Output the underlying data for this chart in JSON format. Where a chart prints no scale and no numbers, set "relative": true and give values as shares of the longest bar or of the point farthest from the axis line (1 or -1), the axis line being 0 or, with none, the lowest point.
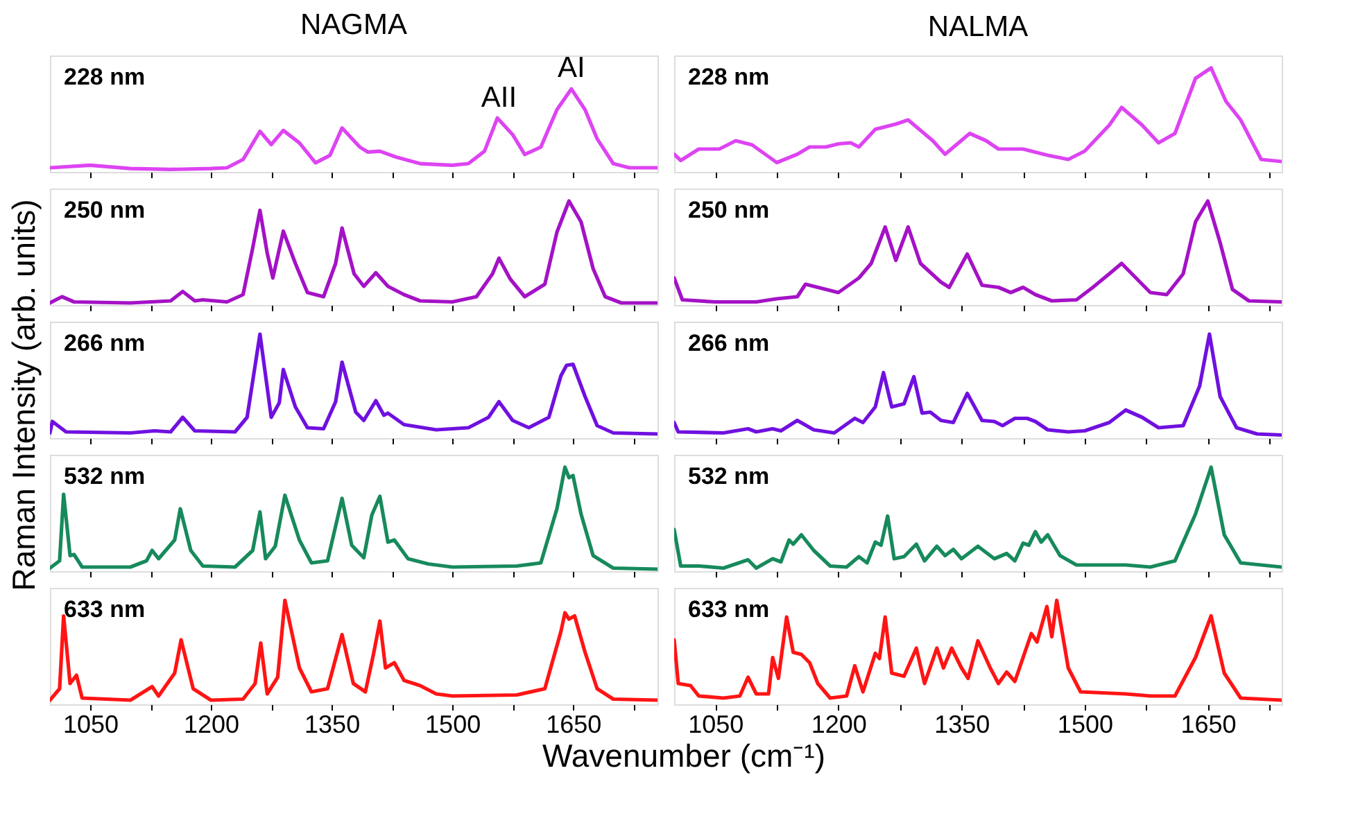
{
  "chart_data": [
    {
      "type": "line",
      "title": "NAGMA",
      "ylabel": "Raman Intensity (arb. units)",
      "relative": true,
      "tick_labels": false,
      "xlim": [
        1000,
        1755
      ],
      "xticks": [
        1050,
        {
          "value": 1125,
          "label": null
        },
        1200,
        {
          "value": 1275,
          "label": null
        },
        1350,
        {
          "value": 1425,
          "label": null
        },
        1500,
        {
          "value": 1575,
          "label": null
        },
        1650,
        {
          "value": 1725,
          "label": null
        }
      ],
      "annotations": [
        {
          "text": "AII",
          "x": 1558,
          "y": 0.72
        },
        {
          "text": "AI",
          "x": 1648,
          "y": 1.08
        }
      ],
      "series": [
        {
          "name": "228 nm",
          "color": "#dd44f2",
          "x": [
            1000,
            1050,
            1100,
            1150,
            1200,
            1220,
            1240,
            1261,
            1275,
            1290,
            1310,
            1330,
            1348,
            1363,
            1385,
            1395,
            1410,
            1430,
            1460,
            1500,
            1520,
            1540,
            1556,
            1575,
            1590,
            1610,
            1630,
            1648,
            1665,
            1680,
            1700,
            1720,
            1755
          ],
          "values": [
            0.05,
            0.08,
            0.04,
            0.03,
            0.04,
            0.05,
            0.15,
            0.49,
            0.33,
            0.5,
            0.35,
            0.11,
            0.2,
            0.53,
            0.3,
            0.24,
            0.25,
            0.18,
            0.1,
            0.08,
            0.1,
            0.25,
            0.65,
            0.45,
            0.21,
            0.3,
            0.75,
            1.0,
            0.75,
            0.4,
            0.1,
            0.05,
            0.05
          ]
        }
      ]
    },
    {
      "type": "line",
      "title": "NALMA",
      "relative": true,
      "tick_labels": false,
      "xlim": [
        1000,
        1740
      ],
      "xticks": [
        1050,
        {
          "value": 1125,
          "label": null
        },
        1200,
        {
          "value": 1275,
          "label": null
        },
        1350,
        {
          "value": 1425,
          "label": null
        },
        1500,
        {
          "value": 1575,
          "label": null
        },
        1650,
        {
          "value": 1725,
          "label": null
        }
      ],
      "series": [
        {
          "name": "228 nm",
          "color": "#dd44f2",
          "x": [
            1000,
            1008,
            1030,
            1055,
            1075,
            1095,
            1125,
            1150,
            1165,
            1185,
            1200,
            1215,
            1225,
            1245,
            1270,
            1285,
            1315,
            1330,
            1360,
            1380,
            1395,
            1425,
            1455,
            1480,
            1500,
            1530,
            1545,
            1570,
            1590,
            1610,
            1635,
            1654,
            1672,
            1690,
            1715,
            1740
          ],
          "values": [
            0.17,
            0.11,
            0.22,
            0.22,
            0.3,
            0.26,
            0.09,
            0.17,
            0.24,
            0.24,
            0.27,
            0.28,
            0.24,
            0.41,
            0.46,
            0.5,
            0.3,
            0.17,
            0.37,
            0.3,
            0.22,
            0.22,
            0.16,
            0.12,
            0.2,
            0.45,
            0.62,
            0.45,
            0.28,
            0.37,
            0.9,
            1.0,
            0.68,
            0.5,
            0.12,
            0.1
          ]
        }
      ]
    },
    {
      "type": "line",
      "relative": true,
      "tick_labels": false,
      "xlim": [
        1000,
        1755
      ],
      "xticks": [
        1050,
        {
          "value": 1125,
          "label": null
        },
        1200,
        {
          "value": 1275,
          "label": null
        },
        1350,
        {
          "value": 1425,
          "label": null
        },
        1500,
        {
          "value": 1575,
          "label": null
        },
        1650,
        {
          "value": 1725,
          "label": null
        }
      ],
      "series": [
        {
          "name": "250 nm",
          "color": "#a412c6",
          "x": [
            1000,
            1015,
            1030,
            1100,
            1150,
            1165,
            1180,
            1190,
            1220,
            1240,
            1252,
            1261,
            1270,
            1277,
            1290,
            1305,
            1320,
            1340,
            1355,
            1363,
            1378,
            1390,
            1405,
            1420,
            1440,
            1460,
            1500,
            1530,
            1550,
            1558,
            1572,
            1590,
            1615,
            1630,
            1645,
            1660,
            1675,
            1690,
            1710,
            1755
          ],
          "values": [
            0.02,
            0.08,
            0.03,
            0.02,
            0.04,
            0.13,
            0.04,
            0.05,
            0.03,
            0.1,
            0.55,
            0.91,
            0.5,
            0.26,
            0.71,
            0.4,
            0.12,
            0.08,
            0.4,
            0.74,
            0.3,
            0.18,
            0.31,
            0.18,
            0.1,
            0.04,
            0.03,
            0.08,
            0.3,
            0.45,
            0.25,
            0.08,
            0.2,
            0.7,
            1.0,
            0.8,
            0.35,
            0.08,
            0.02,
            0.02
          ]
        }
      ]
    },
    {
      "type": "line",
      "relative": true,
      "tick_labels": false,
      "xlim": [
        1000,
        1740
      ],
      "xticks": [
        1050,
        {
          "value": 1125,
          "label": null
        },
        1200,
        {
          "value": 1275,
          "label": null
        },
        1350,
        {
          "value": 1425,
          "label": null
        },
        1500,
        {
          "value": 1575,
          "label": null
        },
        1650,
        {
          "value": 1725,
          "label": null
        }
      ],
      "series": [
        {
          "name": "250 nm",
          "color": "#a412c6",
          "x": [
            1000,
            1010,
            1050,
            1100,
            1125,
            1150,
            1160,
            1190,
            1200,
            1225,
            1240,
            1257,
            1270,
            1285,
            1300,
            1325,
            1335,
            1357,
            1375,
            1395,
            1410,
            1425,
            1440,
            1460,
            1490,
            1510,
            1530,
            1545,
            1560,
            1580,
            1600,
            1620,
            1635,
            1650,
            1665,
            1680,
            1700,
            1740
          ],
          "values": [
            0.26,
            0.05,
            0.03,
            0.03,
            0.06,
            0.08,
            0.2,
            0.14,
            0.12,
            0.26,
            0.4,
            0.75,
            0.43,
            0.75,
            0.4,
            0.22,
            0.17,
            0.49,
            0.19,
            0.17,
            0.12,
            0.17,
            0.1,
            0.04,
            0.05,
            0.17,
            0.3,
            0.4,
            0.28,
            0.12,
            0.1,
            0.3,
            0.8,
            1.0,
            0.6,
            0.15,
            0.04,
            0.03
          ]
        }
      ]
    },
    {
      "type": "line",
      "relative": true,
      "tick_labels": false,
      "xlim": [
        1000,
        1755
      ],
      "xticks": [
        1050,
        {
          "value": 1125,
          "label": null
        },
        1200,
        {
          "value": 1275,
          "label": null
        },
        1350,
        {
          "value": 1425,
          "label": null
        },
        1500,
        {
          "value": 1575,
          "label": null
        },
        1650,
        {
          "value": 1725,
          "label": null
        }
      ],
      "series": [
        {
          "name": "266 nm",
          "color": "#7010e0",
          "x": [
            1000,
            1003,
            1020,
            1100,
            1130,
            1150,
            1165,
            1180,
            1230,
            1245,
            1261,
            1275,
            1285,
            1290,
            1305,
            1320,
            1340,
            1355,
            1363,
            1380,
            1390,
            1405,
            1415,
            1420,
            1440,
            1480,
            1520,
            1545,
            1558,
            1575,
            1595,
            1620,
            1635,
            1642,
            1650,
            1665,
            1680,
            1700,
            1755
          ],
          "values": [
            0.05,
            0.16,
            0.06,
            0.05,
            0.07,
            0.06,
            0.2,
            0.07,
            0.06,
            0.2,
            1.0,
            0.2,
            0.34,
            0.66,
            0.3,
            0.1,
            0.09,
            0.35,
            0.73,
            0.25,
            0.17,
            0.36,
            0.22,
            0.24,
            0.13,
            0.08,
            0.1,
            0.2,
            0.35,
            0.17,
            0.1,
            0.2,
            0.6,
            0.7,
            0.71,
            0.4,
            0.12,
            0.05,
            0.04
          ]
        }
      ]
    },
    {
      "type": "line",
      "relative": true,
      "tick_labels": false,
      "xlim": [
        1000,
        1740
      ],
      "xticks": [
        1050,
        {
          "value": 1125,
          "label": null
        },
        1200,
        {
          "value": 1275,
          "label": null
        },
        1350,
        {
          "value": 1425,
          "label": null
        },
        1500,
        {
          "value": 1575,
          "label": null
        },
        1650,
        {
          "value": 1725,
          "label": null
        }
      ],
      "series": [
        {
          "name": "266 nm",
          "color": "#7010e0",
          "x": [
            1000,
            1005,
            1060,
            1090,
            1100,
            1120,
            1130,
            1150,
            1170,
            1195,
            1220,
            1230,
            1245,
            1255,
            1265,
            1280,
            1292,
            1302,
            1312,
            1325,
            1340,
            1357,
            1375,
            1390,
            1400,
            1415,
            1430,
            1440,
            1455,
            1480,
            1500,
            1530,
            1550,
            1570,
            1590,
            1620,
            1640,
            1652,
            1665,
            1685,
            1710,
            1740
          ],
          "values": [
            0.15,
            0.06,
            0.05,
            0.09,
            0.06,
            0.09,
            0.07,
            0.17,
            0.08,
            0.05,
            0.19,
            0.15,
            0.3,
            0.63,
            0.3,
            0.33,
            0.59,
            0.24,
            0.25,
            0.17,
            0.15,
            0.43,
            0.17,
            0.16,
            0.12,
            0.19,
            0.19,
            0.16,
            0.08,
            0.06,
            0.07,
            0.15,
            0.27,
            0.2,
            0.1,
            0.12,
            0.5,
            1.0,
            0.4,
            0.1,
            0.04,
            0.03
          ]
        }
      ]
    },
    {
      "type": "line",
      "relative": true,
      "tick_labels": false,
      "xlim": [
        1000,
        1755
      ],
      "xticks": [
        1050,
        {
          "value": 1125,
          "label": null
        },
        1200,
        {
          "value": 1275,
          "label": null
        },
        1350,
        {
          "value": 1425,
          "label": null
        },
        1500,
        {
          "value": 1575,
          "label": null
        },
        1650,
        {
          "value": 1725,
          "label": null
        }
      ],
      "series": [
        {
          "name": "532 nm",
          "color": "#178a5c",
          "x": [
            1000,
            1012,
            1017,
            1025,
            1030,
            1040,
            1100,
            1120,
            1127,
            1135,
            1155,
            1162,
            1175,
            1190,
            1230,
            1252,
            1261,
            1268,
            1280,
            1292,
            1310,
            1325,
            1345,
            1363,
            1375,
            1390,
            1400,
            1410,
            1420,
            1428,
            1445,
            1470,
            1500,
            1580,
            1610,
            1630,
            1640,
            1645,
            1650,
            1660,
            1675,
            1700,
            1755
          ],
          "values": [
            0.03,
            0.1,
            0.74,
            0.15,
            0.16,
            0.04,
            0.04,
            0.1,
            0.2,
            0.12,
            0.3,
            0.6,
            0.2,
            0.05,
            0.04,
            0.2,
            0.57,
            0.12,
            0.24,
            0.73,
            0.3,
            0.08,
            0.1,
            0.7,
            0.25,
            0.13,
            0.54,
            0.72,
            0.28,
            0.3,
            0.12,
            0.07,
            0.04,
            0.05,
            0.08,
            0.6,
            1.0,
            0.9,
            0.92,
            0.55,
            0.15,
            0.03,
            0.02
          ]
        }
      ]
    },
    {
      "type": "line",
      "relative": true,
      "tick_labels": false,
      "xlim": [
        1000,
        1740
      ],
      "xticks": [
        1050,
        {
          "value": 1125,
          "label": null
        },
        1200,
        {
          "value": 1275,
          "label": null
        },
        1350,
        {
          "value": 1425,
          "label": null
        },
        1500,
        {
          "value": 1575,
          "label": null
        },
        1650,
        {
          "value": 1725,
          "label": null
        }
      ],
      "series": [
        {
          "name": "532 nm",
          "color": "#178a5c",
          "x": [
            1000,
            1008,
            1030,
            1060,
            1090,
            1100,
            1120,
            1130,
            1140,
            1145,
            1155,
            1170,
            1190,
            1210,
            1225,
            1235,
            1245,
            1252,
            1260,
            1268,
            1280,
            1295,
            1305,
            1320,
            1330,
            1340,
            1350,
            1370,
            1390,
            1405,
            1415,
            1425,
            1432,
            1440,
            1447,
            1455,
            1470,
            1490,
            1550,
            1580,
            1610,
            1635,
            1654,
            1670,
            1690,
            1740
          ],
          "values": [
            0.4,
            0.05,
            0.05,
            0.03,
            0.11,
            0.03,
            0.12,
            0.09,
            0.3,
            0.26,
            0.35,
            0.2,
            0.05,
            0.04,
            0.14,
            0.08,
            0.28,
            0.25,
            0.53,
            0.12,
            0.14,
            0.26,
            0.1,
            0.24,
            0.15,
            0.21,
            0.12,
            0.24,
            0.12,
            0.17,
            0.1,
            0.27,
            0.25,
            0.38,
            0.28,
            0.35,
            0.15,
            0.06,
            0.06,
            0.04,
            0.1,
            0.55,
            1.0,
            0.35,
            0.08,
            0.04
          ]
        }
      ]
    },
    {
      "type": "line",
      "relative": true,
      "tick_labels": "x",
      "xlim": [
        1000,
        1755
      ],
      "xticks": [
        1050,
        {
          "value": 1125,
          "label": null
        },
        1200,
        {
          "value": 1275,
          "label": null
        },
        1350,
        {
          "value": 1425,
          "label": null
        },
        1500,
        {
          "value": 1575,
          "label": null
        },
        1650,
        {
          "value": 1725,
          "label": null
        }
      ],
      "series": [
        {
          "name": "633 nm",
          "color": "#ff1414",
          "x": [
            1000,
            1012,
            1017,
            1025,
            1033,
            1040,
            1100,
            1127,
            1135,
            1155,
            1163,
            1178,
            1200,
            1240,
            1255,
            1262,
            1270,
            1283,
            1292,
            1310,
            1325,
            1345,
            1363,
            1377,
            1392,
            1402,
            1410,
            1417,
            1428,
            1440,
            1460,
            1480,
            1500,
            1580,
            1615,
            1635,
            1640,
            1645,
            1652,
            1665,
            1680,
            1700,
            1755
          ],
          "values": [
            0.04,
            0.15,
            0.85,
            0.2,
            0.28,
            0.06,
            0.04,
            0.17,
            0.08,
            0.3,
            0.62,
            0.15,
            0.04,
            0.05,
            0.2,
            0.59,
            0.1,
            0.26,
            1.0,
            0.35,
            0.12,
            0.15,
            0.67,
            0.2,
            0.12,
            0.48,
            0.8,
            0.35,
            0.4,
            0.23,
            0.18,
            0.1,
            0.08,
            0.09,
            0.15,
            0.7,
            0.88,
            0.82,
            0.85,
            0.5,
            0.15,
            0.05,
            0.04
          ]
        }
      ]
    },
    {
      "type": "line",
      "xlabel": "Wavenumber (cm⁻¹)",
      "relative": true,
      "tick_labels": "x",
      "xlim": [
        1000,
        1740
      ],
      "xticks": [
        1050,
        {
          "value": 1125,
          "label": null
        },
        1200,
        {
          "value": 1275,
          "label": null
        },
        1350,
        {
          "value": 1425,
          "label": null
        },
        1500,
        {
          "value": 1575,
          "label": null
        },
        1650,
        {
          "value": 1725,
          "label": null
        }
      ],
      "series": [
        {
          "name": "633 nm",
          "color": "#ff1414",
          "x": [
            1000,
            1005,
            1020,
            1030,
            1060,
            1080,
            1090,
            1100,
            1115,
            1120,
            1127,
            1137,
            1145,
            1155,
            1165,
            1175,
            1190,
            1210,
            1220,
            1230,
            1245,
            1250,
            1257,
            1265,
            1280,
            1295,
            1305,
            1320,
            1328,
            1338,
            1350,
            1358,
            1370,
            1385,
            1395,
            1405,
            1415,
            1435,
            1442,
            1454,
            1460,
            1466,
            1480,
            1495,
            1550,
            1580,
            1610,
            1635,
            1654,
            1670,
            1690,
            1740
          ],
          "values": [
            0.62,
            0.2,
            0.18,
            0.08,
            0.06,
            0.08,
            0.26,
            0.1,
            0.1,
            0.45,
            0.25,
            0.84,
            0.5,
            0.48,
            0.4,
            0.2,
            0.06,
            0.08,
            0.37,
            0.12,
            0.49,
            0.44,
            0.84,
            0.3,
            0.27,
            0.54,
            0.2,
            0.54,
            0.35,
            0.54,
            0.35,
            0.25,
            0.61,
            0.35,
            0.2,
            0.31,
            0.22,
            0.68,
            0.6,
            0.94,
            0.65,
            1.0,
            0.35,
            0.12,
            0.1,
            0.08,
            0.08,
            0.45,
            0.85,
            0.3,
            0.06,
            0.04
          ]
        }
      ]
    }
  ]
}
